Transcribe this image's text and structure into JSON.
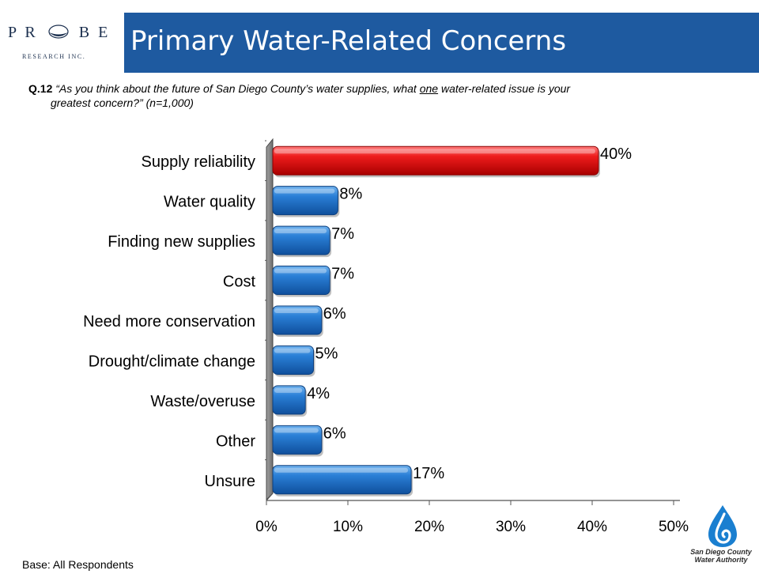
{
  "logo": {
    "letters_left": "P R",
    "letters_right": "B E",
    "subtitle": "RESEARCH INC."
  },
  "header": {
    "title": "Primary Water-Related Concerns"
  },
  "question": {
    "number": "Q.12",
    "text_before": "“As you think about the future of San Diego County’s water supplies, what ",
    "text_emphasis": "one",
    "text_after": " water-related issue is your",
    "text_line2": "greatest concern?” (n=1,000)"
  },
  "footer": {
    "base": "Base:  All Respondents"
  },
  "partner_logo": {
    "line1": "San Diego County",
    "line2": "Water Authority"
  },
  "chart_data": {
    "type": "bar",
    "orientation": "horizontal",
    "categories": [
      "Supply reliability",
      "Water quality",
      "Finding new supplies",
      "Cost",
      "Need more conservation",
      "Drought/climate change",
      "Waste/overuse",
      "Other",
      "Unsure"
    ],
    "values": [
      40,
      8,
      7,
      7,
      6,
      5,
      4,
      6,
      17
    ],
    "data_labels": [
      "40%",
      "8%",
      "7%",
      "7%",
      "6%",
      "5%",
      "4%",
      "6%",
      "17%"
    ],
    "x_ticks": [
      "0%",
      "10%",
      "20%",
      "30%",
      "40%",
      "50%"
    ],
    "xlim": [
      0,
      50
    ],
    "grid": false,
    "colors": {
      "highlight": "#e01010",
      "default": "#1e6fc8"
    },
    "highlight_index": 0
  }
}
